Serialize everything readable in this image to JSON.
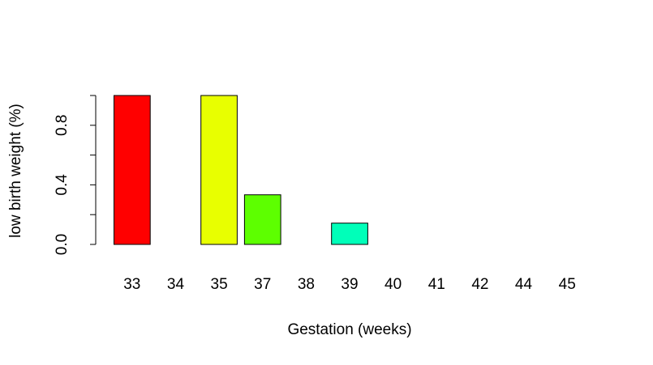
{
  "chart_data": {
    "type": "bar",
    "title": "",
    "xlabel": "Gestation (weeks)",
    "ylabel": "low birth weight (%)",
    "categories": [
      "33",
      "34",
      "35",
      "37",
      "38",
      "39",
      "40",
      "41",
      "42",
      "44",
      "45"
    ],
    "values": [
      1.0,
      0.0,
      1.0,
      0.333,
      0.0,
      0.143,
      0.0,
      0.0,
      0.0,
      0.0,
      0.0
    ],
    "colors": [
      "#FF0000",
      "#FF8B00",
      "#E8FF00",
      "#5DFF00",
      "#00FF2E",
      "#00FFB9",
      "#00B9FF",
      "#002EFF",
      "#5D00FF",
      "#E800FF",
      "#FF008B"
    ],
    "ylim": [
      0,
      1.0
    ],
    "yticks": [
      0.0,
      0.2,
      0.4,
      0.6,
      0.8,
      1.0
    ],
    "ytick_labels": [
      "0.0",
      "",
      "0.4",
      "",
      "0.8",
      ""
    ],
    "grid": false,
    "legend": "none"
  }
}
